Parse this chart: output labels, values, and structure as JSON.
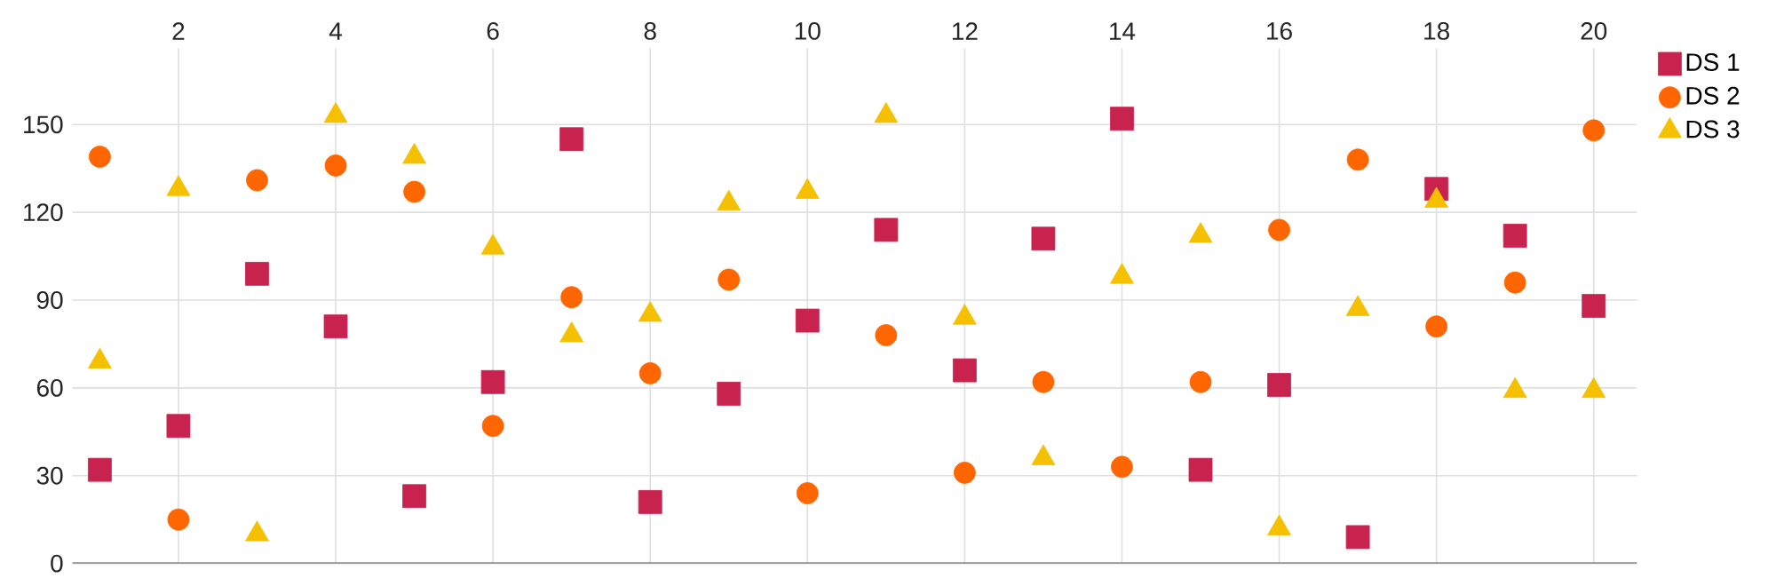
{
  "chart_data": {
    "type": "scatter",
    "x": [
      1,
      2,
      3,
      4,
      5,
      6,
      7,
      8,
      9,
      10,
      11,
      12,
      13,
      14,
      15,
      16,
      17,
      18,
      19,
      20
    ],
    "series": [
      {
        "name": "DS 1",
        "color": "#c8234e",
        "marker": "square",
        "values": [
          32,
          47,
          99,
          81,
          23,
          62,
          145,
          21,
          58,
          83,
          114,
          66,
          111,
          152,
          32,
          61,
          9,
          128,
          112,
          88
        ]
      },
      {
        "name": "DS 2",
        "color": "#ff6600",
        "marker": "circle",
        "values": [
          139,
          15,
          131,
          136,
          127,
          47,
          91,
          65,
          97,
          24,
          78,
          31,
          62,
          33,
          62,
          114,
          138,
          81,
          96,
          148
        ]
      },
      {
        "name": "DS 3",
        "color": "#f5c000",
        "marker": "triangle",
        "values": [
          69,
          128,
          10,
          153,
          139,
          108,
          78,
          85,
          123,
          127,
          153,
          84,
          36,
          98,
          112,
          12,
          87,
          124,
          59,
          59
        ]
      }
    ],
    "xlim": [
      0.65,
      20.55
    ],
    "ylim": [
      0,
      176
    ],
    "xticks": [
      2,
      4,
      6,
      8,
      10,
      12,
      14,
      16,
      18,
      20
    ],
    "yticks": [
      0,
      30,
      60,
      90,
      120,
      150
    ],
    "grid": true,
    "legend": "top right"
  }
}
